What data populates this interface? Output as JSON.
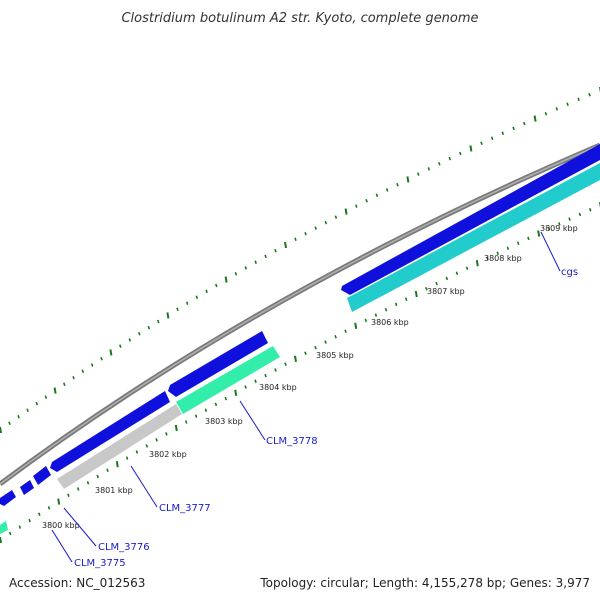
{
  "header": {
    "title": "Clostridium botulinum A2 str. Kyoto, complete genome"
  },
  "footer": {
    "accession": "Accession: NC_012563",
    "summary": "Topology: circular; Length: 4,155,278 bp; Genes: 3,977"
  },
  "ruler": {
    "ticks": [
      {
        "label": "3800 kbp"
      },
      {
        "label": "3801 kbp"
      },
      {
        "label": "3802 kbp"
      },
      {
        "label": "3803 kbp"
      },
      {
        "label": "3804 kbp"
      },
      {
        "label": "3805 kbp"
      },
      {
        "label": "3806 kbp"
      },
      {
        "label": "3807 kbp"
      },
      {
        "label": "3808 kbp"
      },
      {
        "label": "3809 kbp"
      }
    ]
  },
  "genes": [
    {
      "label": "CLM_3775"
    },
    {
      "label": "CLM_3776"
    },
    {
      "label": "CLM_3777"
    },
    {
      "label": "CLM_3778"
    },
    {
      "label": "cgs"
    }
  ],
  "colors": {
    "backbone": "#808080",
    "cds_forward": "#1010dd",
    "cds_forward_dark": "#00008a",
    "cds_reverse_teal": "#22cccc",
    "cds_reverse_teal_dark": "#118888",
    "cds_green": "#33eeaa",
    "cds_gray": "#c8c8c8",
    "tick": "#1a7a1a",
    "label_line": "#1a1acd"
  }
}
